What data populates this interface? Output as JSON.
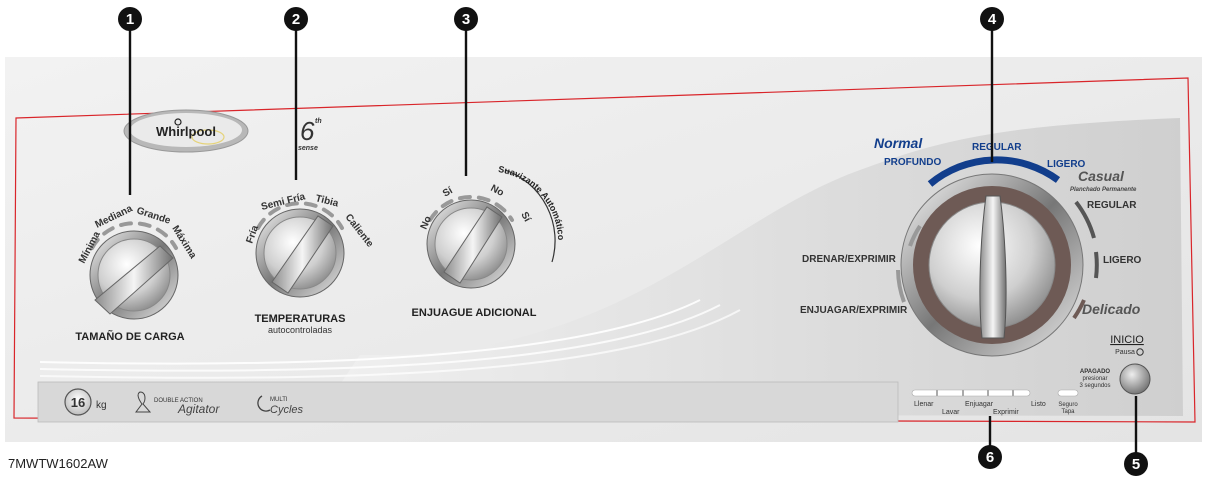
{
  "brand": {
    "name": "Whirlpool",
    "sixth_sense": "6",
    "sixth_sup": "th",
    "sense": "sense"
  },
  "callouts": [
    "1",
    "2",
    "3",
    "4",
    "5",
    "6"
  ],
  "load_size": {
    "title": "TAMAÑO DE CARGA",
    "options": [
      "Mínima",
      "Mediana",
      "Grande",
      "Máxima"
    ]
  },
  "temperature": {
    "title": "TEMPERATURAS",
    "subtitle": "autocontroladas",
    "options": [
      "Fría",
      "Semi Fría",
      "Tibia",
      "Caliente"
    ]
  },
  "extra_rinse": {
    "title": "ENJUAGUE ADICIONAL",
    "options": [
      "No",
      "Sí"
    ],
    "softener_title": "Suavizante Automático",
    "softener_options": [
      "No",
      "Sí"
    ]
  },
  "cycle": {
    "normal_title": "Normal",
    "normal_options": [
      "PROFUNDO",
      "REGULAR",
      "LIGERO"
    ],
    "casual_title": "Casual",
    "casual_subtitle": "Planchado Permanente",
    "casual_options": [
      "REGULAR",
      "LIGERO"
    ],
    "delicate_title": "Delicado",
    "left_options": [
      "DRENAR/EXPRIMIR",
      "ENJUAGAR/EXPRIMIR"
    ]
  },
  "start": {
    "label": "INICIO",
    "pause": "Pausa",
    "off": "APAGADO",
    "hold_1": "presionar",
    "hold_2": "3 segundos"
  },
  "status": {
    "top": [
      "Llenar",
      "Enjuagar",
      "Listo"
    ],
    "bottom": [
      "Lavar",
      "Exprimir"
    ],
    "lock_1": "Seguro",
    "lock_2": "Tapa"
  },
  "badges": {
    "capacity": "16",
    "capacity_unit": "kg",
    "double_action": "DOUBLE ACTION",
    "agitator": "Agitator",
    "multi": "MULTI",
    "cycles": "Cycles"
  },
  "model": "7MWTW1602AW",
  "colors": {
    "outline": "#d9252a",
    "accent_blue": "#123e8c",
    "ring_brown": "#6e5a55",
    "casual_gray": "#555555"
  }
}
